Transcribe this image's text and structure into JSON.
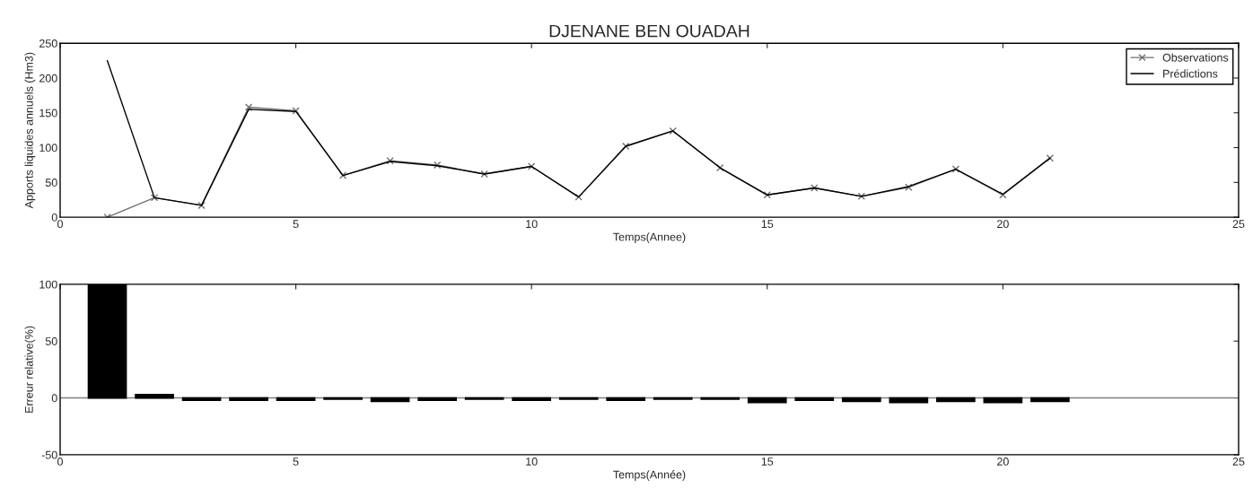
{
  "chart_data": [
    {
      "type": "line",
      "title": "DJENANE BEN OUADAH",
      "xlabel": "Temps(Annee)",
      "ylabel": "Apports liquides annuels (Hm3)",
      "x": [
        1,
        2,
        3,
        4,
        5,
        6,
        7,
        8,
        9,
        10,
        11,
        12,
        13,
        14,
        15,
        16,
        17,
        18,
        19,
        20,
        21
      ],
      "series": [
        {
          "name": "Observations",
          "color": "#707070",
          "marker": "cross",
          "values": [
            0,
            28,
            17,
            158,
            153,
            60,
            81,
            75,
            62,
            73,
            29,
            102,
            124,
            71,
            32,
            42,
            30,
            43,
            69,
            32,
            85
          ]
        },
        {
          "name": "Prédictions",
          "color": "#000000",
          "marker": "none",
          "values": [
            225,
            28,
            17,
            155,
            152,
            60,
            80,
            74,
            62,
            73,
            29,
            102,
            124,
            71,
            32,
            42,
            30,
            44,
            69,
            33,
            85
          ]
        }
      ],
      "xlim": [
        0,
        25
      ],
      "xticks": [
        0,
        5,
        10,
        15,
        20,
        25
      ],
      "ylim": [
        0,
        250
      ],
      "yticks": [
        0,
        50,
        100,
        150,
        200,
        250
      ],
      "legend": "top right",
      "grid": false,
      "line_style": "solid"
    },
    {
      "type": "bar",
      "xlabel": "Temps(Année)",
      "ylabel": "Erreur relative(%)",
      "x": [
        1,
        2,
        3,
        4,
        5,
        6,
        7,
        8,
        9,
        10,
        11,
        12,
        13,
        14,
        15,
        16,
        17,
        18,
        19,
        20,
        21
      ],
      "values": [
        100,
        3,
        -2,
        -2,
        -2,
        -1,
        -3,
        -2,
        -1,
        -2,
        -1,
        -2,
        -1,
        -1,
        -4,
        -2,
        -3,
        -4,
        -3,
        -4,
        -3
      ],
      "color": "#000000",
      "xlim": [
        0,
        25
      ],
      "xticks": [
        0,
        5,
        10,
        15,
        20,
        25
      ],
      "ylim": [
        -50,
        100
      ],
      "yticks": [
        -50,
        0,
        50,
        100
      ],
      "ref_lines": [
        {
          "axis": "y",
          "value": 0,
          "color": "#808080"
        }
      ],
      "grid": false
    }
  ]
}
